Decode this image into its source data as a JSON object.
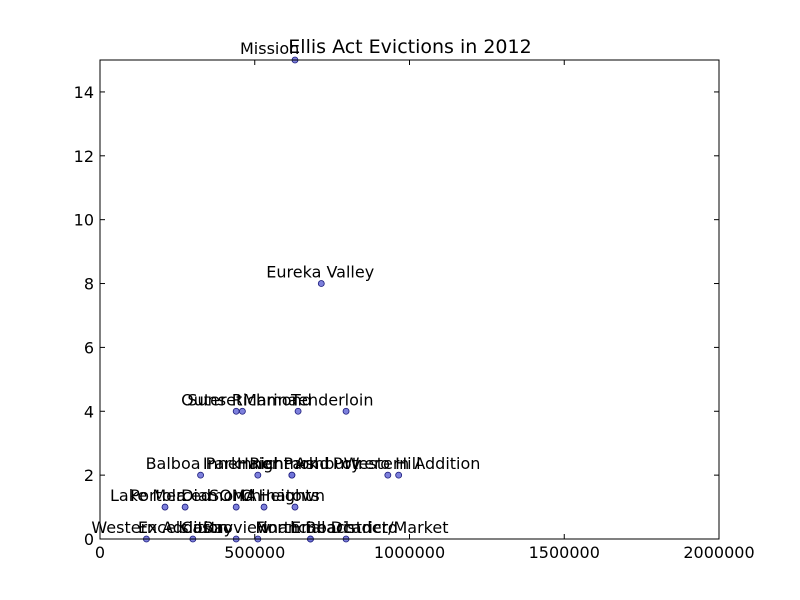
{
  "chart_data": {
    "type": "scatter",
    "title": "Ellis Act Evictions in 2012",
    "xlabel": "",
    "ylabel": "",
    "xlim": [
      0,
      2000000
    ],
    "ylim": [
      0,
      15
    ],
    "grid": false,
    "legend": "none",
    "x_ticks": [
      0,
      500000,
      1000000,
      1500000,
      2000000
    ],
    "x_tick_labels": [
      "0",
      "500000",
      "1000000",
      "1500000",
      "2000000"
    ],
    "y_ticks": [
      0,
      2,
      4,
      6,
      8,
      10,
      12,
      14
    ],
    "y_tick_labels": [
      "0",
      "2",
      "4",
      "6",
      "8",
      "10",
      "12",
      "14"
    ],
    "colors": {
      "marker_fill": "#6f72d8",
      "marker_edge": "#1a1a7a",
      "axis": "#000000"
    },
    "points": [
      {
        "label": "Mission",
        "x": 630000,
        "y": 15
      },
      {
        "label": "Eureka Valley",
        "x": 715000,
        "y": 8
      },
      {
        "label": "Outer Richmond",
        "x": 440000,
        "y": 4
      },
      {
        "label": "Sunset",
        "x": 460000,
        "y": 4
      },
      {
        "label": "Marina",
        "x": 640000,
        "y": 4
      },
      {
        "label": "Tenderloin",
        "x": 795000,
        "y": 4
      },
      {
        "label": "Balboa Park",
        "x": 325000,
        "y": 2
      },
      {
        "label": "Inner Richmond",
        "x": 510000,
        "y": 2
      },
      {
        "label": "Inner Park",
        "x": 620000,
        "y": 2
      },
      {
        "label": "Potrero Hill",
        "x": 930000,
        "y": 2
      },
      {
        "label": "Western Addition",
        "x": 965000,
        "y": 2
      },
      {
        "label": "Haight Ashbury",
        "x": 620000,
        "y": 2
      },
      {
        "label": "Lake Merced",
        "x": 210000,
        "y": 1
      },
      {
        "label": "Portola",
        "x": 275000,
        "y": 1
      },
      {
        "label": "Diamond Heights",
        "x": 440000,
        "y": 1
      },
      {
        "label": "SOMA",
        "x": 530000,
        "y": 1
      },
      {
        "label": "Chinatown",
        "x": 630000,
        "y": 1
      },
      {
        "label": "Financial District/Market",
        "x": 680000,
        "y": 0
      },
      {
        "label": "Embarcadero",
        "x": 795000,
        "y": 0
      },
      {
        "label": "Excelsior",
        "x": 300000,
        "y": 0
      },
      {
        "label": "Bayview",
        "x": 510000,
        "y": 0
      },
      {
        "label": "North Beach",
        "x": 680000,
        "y": 0
      },
      {
        "label": "Castro",
        "x": 440000,
        "y": 0
      },
      {
        "label": "Western Addition",
        "x": 150000,
        "y": 0
      }
    ]
  }
}
